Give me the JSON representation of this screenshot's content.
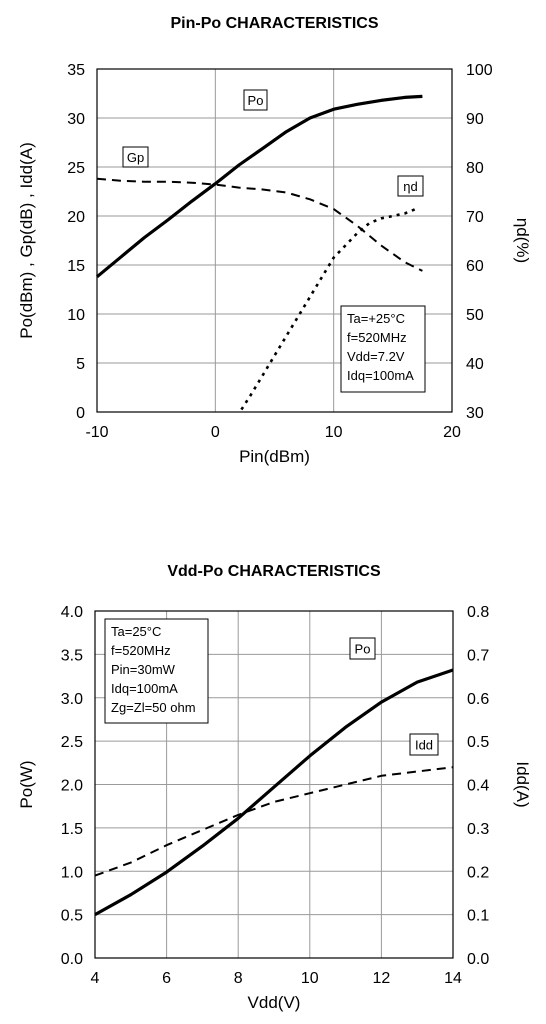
{
  "chart_data": [
    {
      "type": "line",
      "title": "Pin-Po CHARACTERISTICS",
      "xlabel": "Pin(dBm)",
      "ylabel": "Po(dBm) , Gp(dB) , Idd(A)",
      "y2label": "ηd(%)",
      "xlim": [
        -10,
        20
      ],
      "ylim": [
        0,
        35
      ],
      "y2lim": [
        30,
        100
      ],
      "xticks": [
        "-10",
        "0",
        "10",
        "20"
      ],
      "yticks": [
        "0",
        "5",
        "10",
        "15",
        "20",
        "25",
        "30",
        "35"
      ],
      "y2ticks": [
        "30",
        "40",
        "50",
        "60",
        "70",
        "80",
        "90",
        "100"
      ],
      "grid": true,
      "annotation_lines": [
        "Ta=+25°C",
        "f=520MHz",
        "Vdd=7.2V",
        "Idq=100mA"
      ],
      "series": [
        {
          "name": "Po",
          "axis": "left",
          "style": "solid",
          "x": [
            -10,
            -8,
            -6,
            -4,
            -2,
            0,
            2,
            4,
            6,
            8,
            10,
            12,
            14,
            16,
            17.5
          ],
          "y": [
            13.8,
            15.8,
            17.8,
            19.6,
            21.5,
            23.3,
            25.2,
            26.9,
            28.6,
            30.0,
            30.9,
            31.4,
            31.8,
            32.1,
            32.2
          ]
        },
        {
          "name": "Gp",
          "axis": "left",
          "style": "dashed",
          "x": [
            -10,
            -8,
            -6,
            -4,
            -2,
            0,
            2,
            4,
            6,
            8,
            10,
            12,
            14,
            16,
            17.5
          ],
          "y": [
            23.8,
            23.6,
            23.5,
            23.5,
            23.4,
            23.2,
            22.9,
            22.7,
            22.4,
            21.7,
            20.7,
            19.0,
            17.0,
            15.3,
            14.4
          ]
        },
        {
          "name": "ηd",
          "axis": "right",
          "style": "dotted",
          "x": [
            2.2,
            3,
            4,
            5,
            6,
            7,
            8,
            9,
            10,
            11,
            12,
            13,
            14,
            15,
            16,
            17
          ],
          "y": [
            30.5,
            33.5,
            37.5,
            41.5,
            45.5,
            49.5,
            53.5,
            57.5,
            61.5,
            64,
            66.5,
            68.5,
            69.5,
            70,
            70.5,
            71.5
          ]
        }
      ]
    },
    {
      "type": "line",
      "title": "Vdd-Po CHARACTERISTICS",
      "xlabel": "Vdd(V)",
      "ylabel": "Po(W)",
      "y2label": "Idd(A)",
      "xlim": [
        4,
        14
      ],
      "ylim": [
        0,
        4
      ],
      "y2lim": [
        0,
        0.8
      ],
      "xticks": [
        "4",
        "6",
        "8",
        "10",
        "12",
        "14"
      ],
      "yticks": [
        "0.0",
        "0.5",
        "1.0",
        "1.5",
        "2.0",
        "2.5",
        "3.0",
        "3.5",
        "4.0"
      ],
      "y2ticks": [
        "0.0",
        "0.1",
        "0.2",
        "0.3",
        "0.4",
        "0.5",
        "0.6",
        "0.7",
        "0.8"
      ],
      "grid": true,
      "annotation_lines": [
        "Ta=25°C",
        "f=520MHz",
        "Pin=30mW",
        "Idq=100mA",
        "Zg=Zl=50 ohm"
      ],
      "series": [
        {
          "name": "Po",
          "axis": "left",
          "style": "solid",
          "x": [
            4,
            5,
            6,
            7,
            8,
            9,
            10,
            11,
            12,
            13,
            14
          ],
          "y": [
            0.5,
            0.73,
            0.99,
            1.29,
            1.61,
            1.97,
            2.33,
            2.66,
            2.95,
            3.18,
            3.32
          ]
        },
        {
          "name": "Idd",
          "axis": "right",
          "style": "dashed",
          "x": [
            4,
            5,
            6,
            7,
            8,
            9,
            10,
            11,
            12,
            13,
            14
          ],
          "y": [
            0.19,
            0.22,
            0.26,
            0.295,
            0.33,
            0.36,
            0.38,
            0.4,
            0.42,
            0.43,
            0.44
          ]
        }
      ]
    }
  ]
}
